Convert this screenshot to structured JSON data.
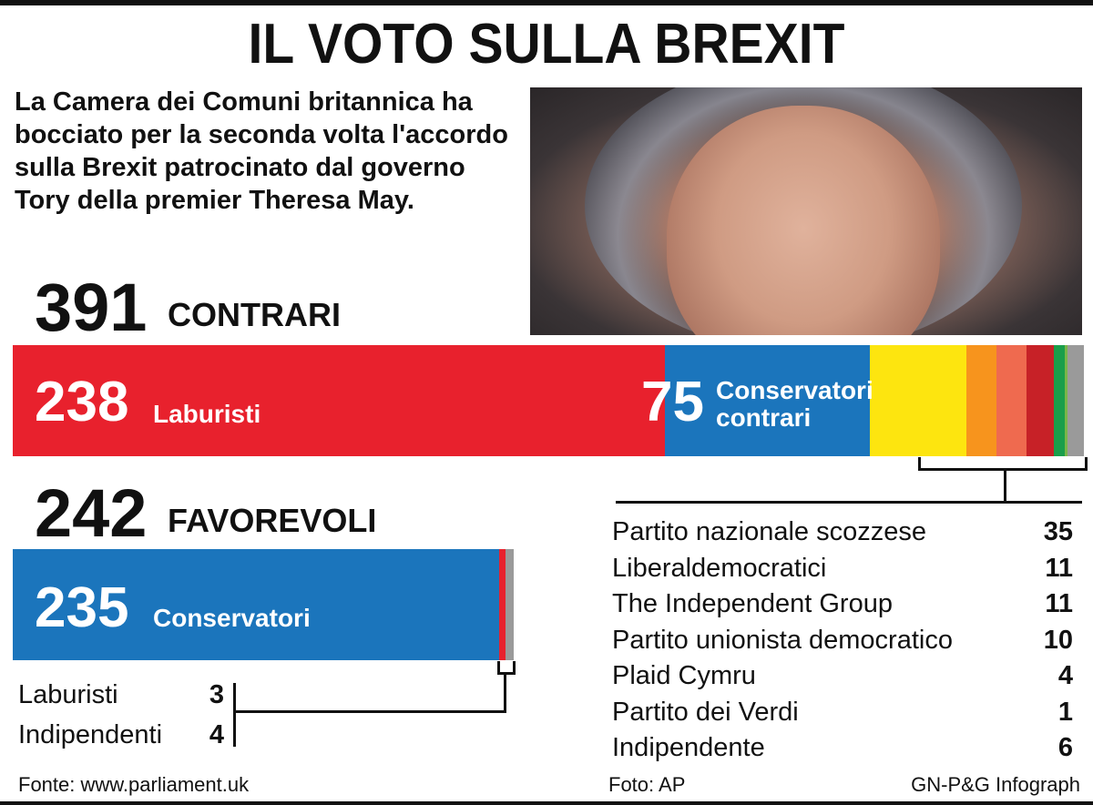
{
  "title": "IL VOTO SULLA BREXIT",
  "intro": "La Camera dei Comuni britannica ha bocciato per la seconda volta l'accordo sulla Brexit patrocinato dal governo Tory della premier Theresa May.",
  "photo_credit": "Foto: AP",
  "source": "Fonte: www.parliament.uk",
  "agency": "GN-P&G Infograph",
  "colors": {
    "labour": "#e8212d",
    "conservative": "#1b75bc",
    "snp": "#fde50f",
    "libdem": "#f7941d",
    "tig": "#ef6a4f",
    "dup": "#c72127",
    "plaid": "#1a9e4a",
    "green": "#7ab648",
    "independent": "#9a9a9a"
  },
  "chart_data": [
    {
      "type": "bar",
      "orientation": "horizontal-stacked",
      "total_value": "391",
      "total_label": "CONTRARI",
      "segments": [
        {
          "name": "Laburisti",
          "value": 238,
          "label": "Laburisti",
          "color_key": "labour"
        },
        {
          "name": "Conservatori contrari",
          "value": 75,
          "label": "Conservatori contrari",
          "color_key": "conservative"
        },
        {
          "name": "Partito nazionale scozzese",
          "value": 35,
          "color_key": "snp"
        },
        {
          "name": "Liberaldemocratici",
          "value": 11,
          "color_key": "libdem"
        },
        {
          "name": "The Independent Group",
          "value": 11,
          "color_key": "tig"
        },
        {
          "name": "Partito unionista democratico",
          "value": 10,
          "color_key": "dup"
        },
        {
          "name": "Plaid Cymru",
          "value": 4,
          "color_key": "plaid"
        },
        {
          "name": "Partito dei Verdi",
          "value": 1,
          "color_key": "green"
        },
        {
          "name": "Indipendente",
          "value": 6,
          "color_key": "independent"
        }
      ]
    },
    {
      "type": "bar",
      "orientation": "horizontal-stacked",
      "total_value": "242",
      "total_label": "FAVOREVOLI",
      "segments": [
        {
          "name": "Conservatori",
          "value": 235,
          "label": "Conservatori",
          "color_key": "conservative"
        },
        {
          "name": "Laburisti",
          "value": 3,
          "color_key": "labour"
        },
        {
          "name": "Indipendenti",
          "value": 4,
          "color_key": "independent"
        }
      ]
    }
  ],
  "against_breakdown": [
    {
      "name": "Partito nazionale scozzese",
      "value": "35"
    },
    {
      "name": "Liberaldemocratici",
      "value": "11"
    },
    {
      "name": "The Independent Group",
      "value": "11"
    },
    {
      "name": "Partito unionista democratico",
      "value": "10"
    },
    {
      "name": "Plaid Cymru",
      "value": "4"
    },
    {
      "name": "Partito dei Verdi",
      "value": "1"
    },
    {
      "name": "Indipendente",
      "value": "6"
    }
  ],
  "for_breakdown": [
    {
      "name": "Laburisti",
      "value": "3"
    },
    {
      "name": "Indipendenti",
      "value": "4"
    }
  ],
  "labels": {
    "contrari_lab_num": "238",
    "contrari_lab_text": "Laburisti",
    "contrari_con_num": "75",
    "contrari_con_text_1": "Conservatori",
    "contrari_con_text_2": "contrari",
    "favorevoli_con_num": "235",
    "favorevoli_con_text": "Conservatori"
  }
}
